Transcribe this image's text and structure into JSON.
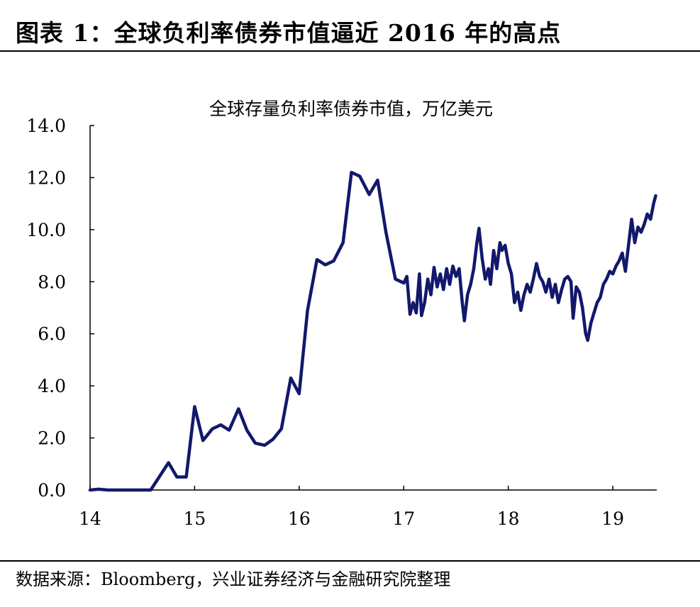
{
  "figure_title": "图表 1：全球负利率债券市值逼近 2016 年的高点",
  "source_note": "数据来源：Bloomberg，兴业证券经济与金融研究院整理",
  "colors": {
    "line": "#12186b",
    "axis": "#000000"
  },
  "chart_data": {
    "type": "line",
    "title": "全球存量负利率债券市值，万亿美元",
    "xlabel": "",
    "ylabel": "",
    "xlim": [
      2014.0,
      2019.42
    ],
    "ylim": [
      0,
      14
    ],
    "xticks": [
      {
        "value": 2014,
        "label": "14"
      },
      {
        "value": 2015,
        "label": "15"
      },
      {
        "value": 2016,
        "label": "16"
      },
      {
        "value": 2017,
        "label": "17"
      },
      {
        "value": 2018,
        "label": "18"
      },
      {
        "value": 2019,
        "label": "19"
      }
    ],
    "yticks": [
      {
        "value": 0,
        "label": "0.0"
      },
      {
        "value": 2,
        "label": "2.0"
      },
      {
        "value": 4,
        "label": "4.0"
      },
      {
        "value": 6,
        "label": "6.0"
      },
      {
        "value": 8,
        "label": "8.0"
      },
      {
        "value": 10,
        "label": "10.0"
      },
      {
        "value": 12,
        "label": "12.0"
      },
      {
        "value": 14,
        "label": "14.0"
      }
    ],
    "grid": false,
    "series": [
      {
        "values": [
          [
            2014.0,
            0.0
          ],
          [
            2014.08,
            0.03
          ],
          [
            2014.17,
            0.0
          ],
          [
            2014.33,
            0.0
          ],
          [
            2014.5,
            0.0
          ],
          [
            2014.58,
            0.0
          ],
          [
            2014.75,
            1.05
          ],
          [
            2014.83,
            0.5
          ],
          [
            2014.92,
            0.5
          ],
          [
            2015.0,
            3.2
          ],
          [
            2015.08,
            1.9
          ],
          [
            2015.17,
            2.35
          ],
          [
            2015.25,
            2.5
          ],
          [
            2015.33,
            2.3
          ],
          [
            2015.42,
            3.12
          ],
          [
            2015.5,
            2.3
          ],
          [
            2015.58,
            1.8
          ],
          [
            2015.67,
            1.72
          ],
          [
            2015.75,
            1.95
          ],
          [
            2015.83,
            2.35
          ],
          [
            2015.92,
            4.3
          ],
          [
            2016.0,
            3.7
          ],
          [
            2016.08,
            6.9
          ],
          [
            2016.17,
            8.85
          ],
          [
            2016.25,
            8.65
          ],
          [
            2016.33,
            8.8
          ],
          [
            2016.42,
            9.5
          ],
          [
            2016.5,
            12.2
          ],
          [
            2016.58,
            12.05
          ],
          [
            2016.67,
            11.35
          ],
          [
            2016.75,
            11.9
          ],
          [
            2016.83,
            9.9
          ],
          [
            2016.92,
            8.1
          ],
          [
            2017.0,
            7.95
          ],
          [
            2017.03,
            8.2
          ],
          [
            2017.06,
            6.75
          ],
          [
            2017.09,
            7.2
          ],
          [
            2017.12,
            6.8
          ],
          [
            2017.15,
            8.3
          ],
          [
            2017.17,
            6.7
          ],
          [
            2017.2,
            7.2
          ],
          [
            2017.23,
            8.1
          ],
          [
            2017.26,
            7.5
          ],
          [
            2017.29,
            8.55
          ],
          [
            2017.32,
            7.8
          ],
          [
            2017.35,
            8.3
          ],
          [
            2017.38,
            7.7
          ],
          [
            2017.41,
            8.5
          ],
          [
            2017.44,
            7.9
          ],
          [
            2017.47,
            8.6
          ],
          [
            2017.5,
            8.2
          ],
          [
            2017.53,
            8.5
          ],
          [
            2017.56,
            7.2
          ],
          [
            2017.58,
            6.5
          ],
          [
            2017.61,
            7.5
          ],
          [
            2017.64,
            7.9
          ],
          [
            2017.67,
            8.5
          ],
          [
            2017.7,
            9.5
          ],
          [
            2017.72,
            10.05
          ],
          [
            2017.75,
            8.9
          ],
          [
            2017.78,
            8.1
          ],
          [
            2017.81,
            8.5
          ],
          [
            2017.83,
            7.9
          ],
          [
            2017.86,
            9.2
          ],
          [
            2017.89,
            8.5
          ],
          [
            2017.92,
            9.5
          ],
          [
            2017.94,
            9.2
          ],
          [
            2017.97,
            9.4
          ],
          [
            2018.0,
            8.7
          ],
          [
            2018.03,
            8.3
          ],
          [
            2018.06,
            7.2
          ],
          [
            2018.09,
            7.6
          ],
          [
            2018.12,
            6.9
          ],
          [
            2018.15,
            7.5
          ],
          [
            2018.18,
            7.9
          ],
          [
            2018.21,
            7.6
          ],
          [
            2018.24,
            8.1
          ],
          [
            2018.27,
            8.7
          ],
          [
            2018.3,
            8.2
          ],
          [
            2018.33,
            8.0
          ],
          [
            2018.36,
            7.6
          ],
          [
            2018.39,
            8.1
          ],
          [
            2018.42,
            7.4
          ],
          [
            2018.45,
            7.9
          ],
          [
            2018.48,
            7.2
          ],
          [
            2018.51,
            7.7
          ],
          [
            2018.54,
            8.1
          ],
          [
            2018.57,
            8.2
          ],
          [
            2018.6,
            8.0
          ],
          [
            2018.62,
            6.6
          ],
          [
            2018.65,
            7.8
          ],
          [
            2018.68,
            7.6
          ],
          [
            2018.71,
            7.0
          ],
          [
            2018.74,
            6.0
          ],
          [
            2018.76,
            5.75
          ],
          [
            2018.79,
            6.4
          ],
          [
            2018.82,
            6.8
          ],
          [
            2018.85,
            7.2
          ],
          [
            2018.88,
            7.4
          ],
          [
            2018.91,
            7.9
          ],
          [
            2018.94,
            8.1
          ],
          [
            2018.97,
            8.4
          ],
          [
            2019.0,
            8.3
          ],
          [
            2019.03,
            8.6
          ],
          [
            2019.06,
            8.8
          ],
          [
            2019.09,
            9.1
          ],
          [
            2019.12,
            8.4
          ],
          [
            2019.15,
            9.4
          ],
          [
            2019.18,
            10.4
          ],
          [
            2019.21,
            9.5
          ],
          [
            2019.24,
            10.1
          ],
          [
            2019.27,
            9.9
          ],
          [
            2019.3,
            10.2
          ],
          [
            2019.33,
            10.6
          ],
          [
            2019.36,
            10.4
          ],
          [
            2019.39,
            11.0
          ],
          [
            2019.41,
            11.3
          ]
        ]
      }
    ]
  }
}
